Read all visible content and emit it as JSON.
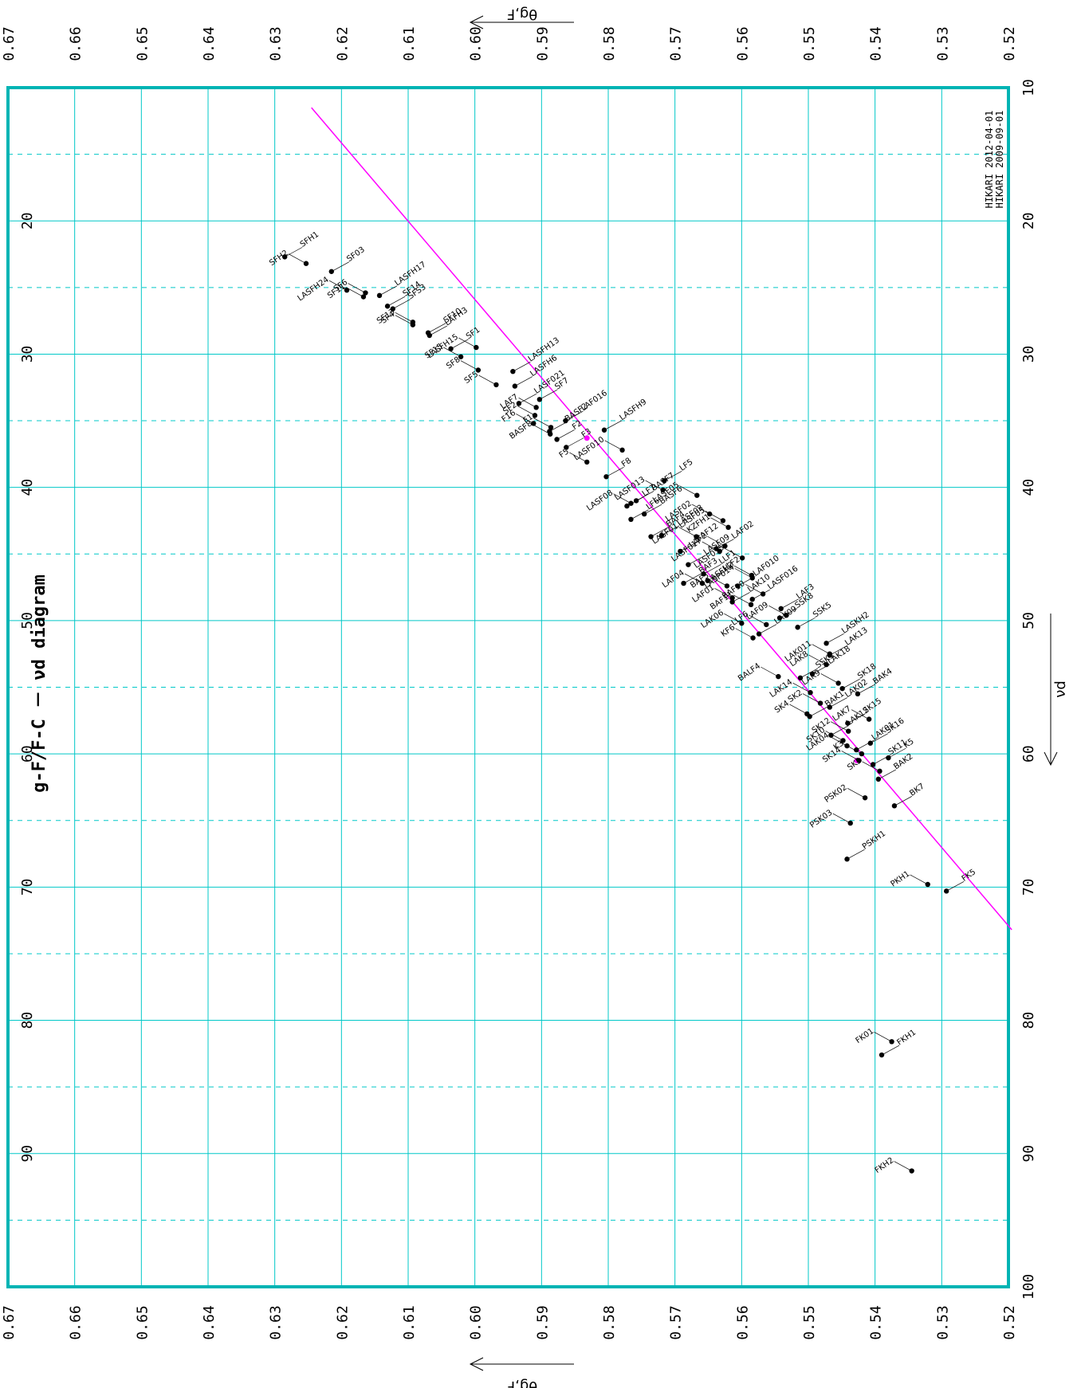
{
  "chart_data": {
    "type": "scatter",
    "title": "g-F/F-C － νd diagram",
    "xlabel": "νd",
    "ylabel": "θg,F",
    "xlim": [
      10,
      100
    ],
    "ylim": [
      0.52,
      0.67
    ],
    "x_ticks": [
      "10",
      "20",
      "30",
      "40",
      "50",
      "60",
      "70",
      "80",
      "90",
      "100"
    ],
    "y_ticks": [
      "0.52",
      "0.53",
      "0.54",
      "0.55",
      "0.56",
      "0.57",
      "0.58",
      "0.59",
      "0.60",
      "0.61",
      "0.62",
      "0.63",
      "0.64",
      "0.65",
      "0.66",
      "0.67"
    ],
    "grid": true,
    "catalog_lines": [
      "HIKARI  2012-04-01",
      "HIKARI  2009-09-01"
    ],
    "reference_line": {
      "color": "#ff00ff",
      "x": [
        11.5,
        73.2
      ],
      "y": [
        0.6245,
        0.5195
      ]
    },
    "reference_points": [
      {
        "x": 36.3,
        "y": 0.5832
      },
      {
        "x": 60.5,
        "y": 0.5427
      }
    ],
    "colors": {
      "frame": "#00b4b4",
      "grid": "#00c8c8",
      "reference": "#ff00ff",
      "points": "#000000"
    },
    "points": [
      {
        "name": "SFH1",
        "x": 22.7,
        "y": 0.6285
      },
      {
        "name": "SFH2",
        "x": 23.2,
        "y": 0.6253
      },
      {
        "name": "SF03",
        "x": 23.8,
        "y": 0.6215
      },
      {
        "name": "SF6",
        "x": 25.4,
        "y": 0.6164
      },
      {
        "name": "LASFH17",
        "x": 25.6,
        "y": 0.6143
      },
      {
        "name": "LASFH24",
        "x": 25.2,
        "y": 0.6192
      },
      {
        "name": "SF14",
        "x": 26.4,
        "y": 0.6131
      },
      {
        "name": "SF11",
        "x": 25.7,
        "y": 0.6167
      },
      {
        "name": "SFS3",
        "x": 26.6,
        "y": 0.6123
      },
      {
        "name": "SF13",
        "x": 27.6,
        "y": 0.6093
      },
      {
        "name": "SF10",
        "x": 28.4,
        "y": 0.607
      },
      {
        "name": "SF4",
        "x": 27.8,
        "y": 0.6093
      },
      {
        "name": "LAFH3",
        "x": 28.6,
        "y": 0.6068
      },
      {
        "name": "LASFH15",
        "x": 29.5,
        "y": 0.5998
      },
      {
        "name": "SF1",
        "x": 29.6,
        "y": 0.6036
      },
      {
        "name": "SF15",
        "x": 30.2,
        "y": 0.6021
      },
      {
        "name": "LASFH13",
        "x": 31.3,
        "y": 0.5943
      },
      {
        "name": "SF8",
        "x": 31.2,
        "y": 0.5995
      },
      {
        "name": "LASFH6",
        "x": 32.4,
        "y": 0.594
      },
      {
        "name": "SF5",
        "x": 32.3,
        "y": 0.5968
      },
      {
        "name": "SF7",
        "x": 33.4,
        "y": 0.5903
      },
      {
        "name": "LAF7",
        "x": 34.0,
        "y": 0.5908
      },
      {
        "name": "LASF021",
        "x": 33.7,
        "y": 0.5934
      },
      {
        "name": "SF2",
        "x": 34.6,
        "y": 0.591
      },
      {
        "name": "LAF016",
        "x": 35.0,
        "y": 0.5864
      },
      {
        "name": "F16",
        "x": 35.2,
        "y": 0.5912
      },
      {
        "name": "LASFH9",
        "x": 35.7,
        "y": 0.5806
      },
      {
        "name": "F1",
        "x": 35.5,
        "y": 0.5886
      },
      {
        "name": "BASF2",
        "x": 35.8,
        "y": 0.5888
      },
      {
        "name": "BASF8",
        "x": 36.0,
        "y": 0.5887
      },
      {
        "name": "F2",
        "x": 36.4,
        "y": 0.5877
      },
      {
        "name": "LASF010",
        "x": 37.2,
        "y": 0.5779
      },
      {
        "name": "F3",
        "x": 37.0,
        "y": 0.5863
      },
      {
        "name": "F5",
        "x": 38.1,
        "y": 0.5832
      },
      {
        "name": "LF5",
        "x": 39.5,
        "y": 0.5716
      },
      {
        "name": "LASF013",
        "x": 40.2,
        "y": 0.5718
      },
      {
        "name": "F8",
        "x": 39.2,
        "y": 0.5803
      },
      {
        "name": "LASF05",
        "x": 40.6,
        "y": 0.5667
      },
      {
        "name": "BASF7",
        "x": 41.0,
        "y": 0.5758
      },
      {
        "name": "LASF08",
        "x": 41.2,
        "y": 0.5766
      },
      {
        "name": "LF7",
        "x": 41.4,
        "y": 0.5772
      },
      {
        "name": "LASF02",
        "x": 42.0,
        "y": 0.5648
      },
      {
        "name": "BASF6",
        "x": 42.0,
        "y": 0.5746
      },
      {
        "name": "LASF05b",
        "x": 42.5,
        "y": 0.5628
      },
      {
        "name": "LF6",
        "x": 42.4,
        "y": 0.5766
      },
      {
        "name": "KZFH1",
        "x": 43.0,
        "y": 0.562
      },
      {
        "name": "LASF03",
        "x": 43.6,
        "y": 0.572
      },
      {
        "name": "LASF01",
        "x": 43.7,
        "y": 0.5668
      },
      {
        "name": "BAF4",
        "x": 43.7,
        "y": 0.5736
      },
      {
        "name": "LAF2",
        "x": 44.4,
        "y": 0.5625
      },
      {
        "name": "LAF02",
        "x": 44.6,
        "y": 0.5638
      },
      {
        "name": "LASF017",
        "x": 44.8,
        "y": 0.5633
      },
      {
        "name": "BAF12",
        "x": 44.8,
        "y": 0.5692
      },
      {
        "name": "LASF015",
        "x": 45.3,
        "y": 0.5599
      },
      {
        "name": "LASF09",
        "x": 45.8,
        "y": 0.568
      },
      {
        "name": "LASFH2",
        "x": 46.6,
        "y": 0.5585
      },
      {
        "name": "LLF1",
        "x": 46.5,
        "y": 0.5657
      },
      {
        "name": "LASF014",
        "x": 46.8,
        "y": 0.5584
      },
      {
        "name": "LLF2",
        "x": 47.0,
        "y": 0.5651
      },
      {
        "name": "LAF04",
        "x": 47.2,
        "y": 0.5659
      },
      {
        "name": "BAF3",
        "x": 47.2,
        "y": 0.5687
      },
      {
        "name": "BAF5",
        "x": 47.4,
        "y": 0.5622
      },
      {
        "name": "LAF010",
        "x": 47.4,
        "y": 0.5606
      },
      {
        "name": "BAF10",
        "x": 48.0,
        "y": 0.5568
      },
      {
        "name": "LASF016",
        "x": 48.4,
        "y": 0.5584
      },
      {
        "name": "LAF01",
        "x": 48.3,
        "y": 0.5614
      },
      {
        "name": "LAK10",
        "x": 48.6,
        "y": 0.5614
      },
      {
        "name": "BAF11",
        "x": 48.8,
        "y": 0.5586
      },
      {
        "name": "LAF3",
        "x": 49.1,
        "y": 0.5541
      },
      {
        "name": "LAF09",
        "x": 49.6,
        "y": 0.5533
      },
      {
        "name": "SSK8",
        "x": 49.8,
        "y": 0.5543
      },
      {
        "name": "LLF6",
        "x": 50.3,
        "y": 0.5563
      },
      {
        "name": "SSK5",
        "x": 50.5,
        "y": 0.5516
      },
      {
        "name": "LAK06",
        "x": 50.2,
        "y": 0.56
      },
      {
        "name": "LAK09",
        "x": 51.0,
        "y": 0.5574
      },
      {
        "name": "KF6",
        "x": 51.3,
        "y": 0.5583
      },
      {
        "name": "LASKH2",
        "x": 51.7,
        "y": 0.5473
      },
      {
        "name": "LAK011",
        "x": 52.5,
        "y": 0.5468
      },
      {
        "name": "LAK13",
        "x": 52.6,
        "y": 0.5468
      },
      {
        "name": "LAK8",
        "x": 53.3,
        "y": 0.5473
      },
      {
        "name": "LAK18",
        "x": 54.0,
        "y": 0.5494
      },
      {
        "name": "BALF4",
        "x": 54.2,
        "y": 0.5545
      },
      {
        "name": "SSK1",
        "x": 54.3,
        "y": 0.5512
      },
      {
        "name": "LAK9",
        "x": 54.7,
        "y": 0.5455
      },
      {
        "name": "SK18",
        "x": 55.1,
        "y": 0.5449
      },
      {
        "name": "LAK14",
        "x": 55.4,
        "y": 0.5497
      },
      {
        "name": "BAK4",
        "x": 55.5,
        "y": 0.5426
      },
      {
        "name": "SK2",
        "x": 56.2,
        "y": 0.5482
      },
      {
        "name": "LAK02",
        "x": 56.5,
        "y": 0.5468
      },
      {
        "name": "SK4",
        "x": 57.0,
        "y": 0.5502
      },
      {
        "name": "BAK1",
        "x": 57.2,
        "y": 0.5498
      },
      {
        "name": "LAK7",
        "x": 57.4,
        "y": 0.5409
      },
      {
        "name": "SK15",
        "x": 57.7,
        "y": 0.5441
      },
      {
        "name": "SK12",
        "x": 58.3,
        "y": 0.544
      },
      {
        "name": "LAK12",
        "x": 58.6,
        "y": 0.5466
      },
      {
        "name": "SK10",
        "x": 59.0,
        "y": 0.5448
      },
      {
        "name": "SK16",
        "x": 59.2,
        "y": 0.5407
      },
      {
        "name": "LAK04",
        "x": 59.4,
        "y": 0.5442
      },
      {
        "name": "LAK01",
        "x": 59.7,
        "y": 0.5428
      },
      {
        "name": "K3",
        "x": 60.0,
        "y": 0.542
      },
      {
        "name": "K5",
        "x": 60.3,
        "y": 0.538
      },
      {
        "name": "SK14",
        "x": 60.5,
        "y": 0.5424
      },
      {
        "name": "SK11",
        "x": 60.8,
        "y": 0.5403
      },
      {
        "name": "SK5",
        "x": 61.3,
        "y": 0.5393
      },
      {
        "name": "BAK2",
        "x": 61.9,
        "y": 0.5395
      },
      {
        "name": "PSK02",
        "x": 63.3,
        "y": 0.5415
      },
      {
        "name": "BK7",
        "x": 63.9,
        "y": 0.5371
      },
      {
        "name": "PSK03",
        "x": 65.2,
        "y": 0.5437
      },
      {
        "name": "PSKH1",
        "x": 67.9,
        "y": 0.5442
      },
      {
        "name": "PKH1",
        "x": 69.8,
        "y": 0.5321
      },
      {
        "name": "FK5",
        "x": 70.3,
        "y": 0.5293
      },
      {
        "name": "FK01",
        "x": 81.6,
        "y": 0.5375
      },
      {
        "name": "FKH1",
        "x": 82.6,
        "y": 0.539
      },
      {
        "name": "FKH2",
        "x": 91.3,
        "y": 0.5345
      }
    ]
  }
}
